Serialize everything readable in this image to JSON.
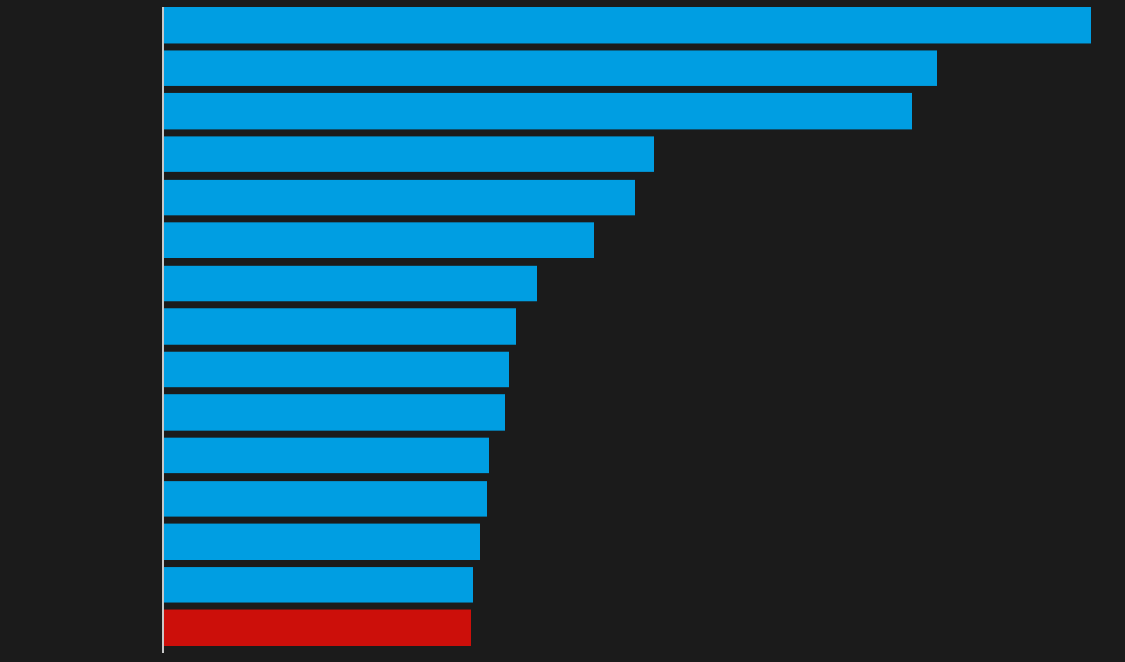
{
  "chart_data": {
    "type": "barh",
    "categories": [
      null,
      null,
      null,
      null,
      null,
      null,
      null,
      null,
      null,
      null,
      null,
      null,
      null,
      null,
      null
    ],
    "values": [
      1022,
      852,
      824,
      540,
      519,
      474,
      411,
      388,
      380,
      376,
      358,
      356,
      348,
      340,
      338
    ],
    "colors": [
      "#009ee2",
      "#009ee2",
      "#009ee2",
      "#009ee2",
      "#009ee2",
      "#009ee2",
      "#009ee2",
      "#009ee2",
      "#009ee2",
      "#009ee2",
      "#009ee2",
      "#009ee2",
      "#009ee2",
      "#009ee2",
      "#cc0f0a"
    ],
    "xlim": [
      0,
      1059
    ]
  }
}
